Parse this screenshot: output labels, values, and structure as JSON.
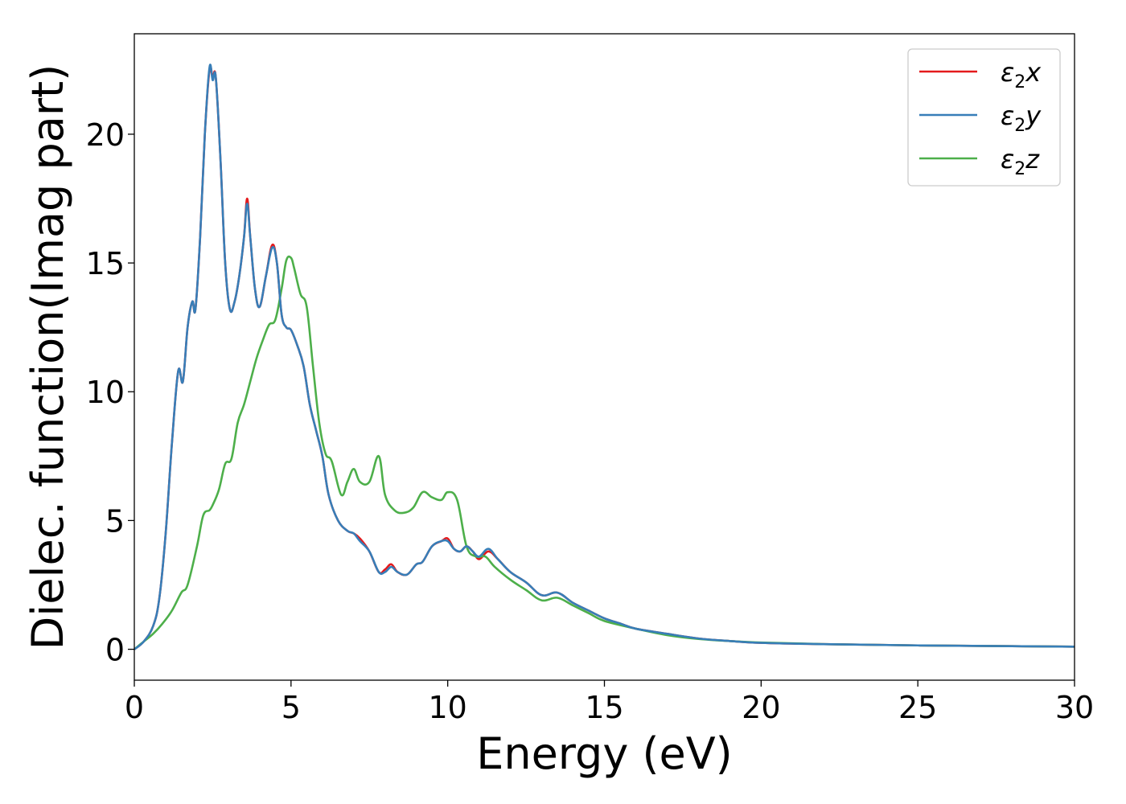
{
  "chart_data": {
    "type": "line",
    "xlabel": "Energy (eV)",
    "ylabel": "Dielec. function(Imag part)",
    "xlim": [
      0,
      30
    ],
    "ylim": [
      -1.2,
      23.9
    ],
    "xticks": [
      0,
      5,
      10,
      15,
      20,
      25,
      30
    ],
    "yticks": [
      0,
      5,
      10,
      15,
      20
    ],
    "grid": false,
    "legend": "top-right",
    "series": [
      {
        "name": "ε2x",
        "legend_base": "ε",
        "legend_sub": "2",
        "legend_tail": "x",
        "color": "#e41a1c",
        "x": [
          0,
          0.3,
          0.6,
          0.8,
          1.0,
          1.2,
          1.4,
          1.55,
          1.7,
          1.85,
          1.95,
          2.1,
          2.25,
          2.4,
          2.5,
          2.6,
          2.75,
          2.9,
          3.05,
          3.2,
          3.35,
          3.5,
          3.6,
          3.7,
          3.85,
          4.0,
          4.2,
          4.4,
          4.55,
          4.7,
          4.85,
          5.0,
          5.2,
          5.4,
          5.6,
          5.8,
          6.0,
          6.2,
          6.5,
          6.8,
          7.0,
          7.2,
          7.5,
          7.8,
          8.0,
          8.2,
          8.4,
          8.7,
          9.0,
          9.2,
          9.5,
          9.8,
          10.0,
          10.2,
          10.4,
          10.6,
          10.8,
          11.0,
          11.3,
          11.6,
          12.0,
          12.5,
          13.0,
          13.5,
          14.0,
          14.5,
          15.0,
          15.5,
          16.0,
          17.0,
          18.0,
          19.0,
          20.0,
          22.0,
          25.0,
          28.0,
          30.0
        ],
        "values": [
          0,
          0.3,
          0.9,
          2.0,
          4.5,
          8.0,
          10.8,
          10.4,
          12.5,
          13.5,
          13.2,
          16.0,
          20.0,
          22.5,
          22.2,
          22.2,
          19.0,
          15.0,
          13.2,
          13.5,
          14.5,
          16.0,
          17.5,
          16.0,
          14.0,
          13.3,
          14.5,
          15.7,
          15.0,
          13.0,
          12.5,
          12.4,
          11.8,
          11.0,
          9.5,
          8.5,
          7.5,
          6.0,
          5.0,
          4.6,
          4.5,
          4.3,
          3.8,
          3.0,
          3.1,
          3.3,
          3.0,
          2.9,
          3.3,
          3.4,
          4.0,
          4.2,
          4.3,
          3.9,
          3.8,
          4.0,
          3.8,
          3.5,
          3.8,
          3.5,
          3.0,
          2.6,
          2.1,
          2.2,
          1.8,
          1.5,
          1.2,
          1.0,
          0.8,
          0.6,
          0.42,
          0.32,
          0.25,
          0.2,
          0.15,
          0.12,
          0.1
        ]
      },
      {
        "name": "ε2y",
        "legend_base": "ε",
        "legend_sub": "2",
        "legend_tail": "y",
        "color": "#377eb8",
        "x": [
          0,
          0.3,
          0.6,
          0.8,
          1.0,
          1.2,
          1.4,
          1.55,
          1.7,
          1.85,
          1.95,
          2.1,
          2.25,
          2.4,
          2.5,
          2.6,
          2.75,
          2.9,
          3.05,
          3.2,
          3.35,
          3.5,
          3.6,
          3.7,
          3.85,
          4.0,
          4.2,
          4.4,
          4.55,
          4.7,
          4.85,
          5.0,
          5.2,
          5.4,
          5.6,
          5.8,
          6.0,
          6.2,
          6.5,
          6.8,
          7.0,
          7.2,
          7.5,
          7.8,
          8.0,
          8.2,
          8.4,
          8.7,
          9.0,
          9.2,
          9.5,
          9.8,
          10.0,
          10.2,
          10.4,
          10.6,
          10.8,
          11.0,
          11.3,
          11.6,
          12.0,
          12.5,
          13.0,
          13.5,
          14.0,
          14.5,
          15.0,
          15.5,
          16.0,
          17.0,
          18.0,
          19.0,
          20.0,
          22.0,
          25.0,
          28.0,
          30.0
        ],
        "values": [
          0,
          0.3,
          0.9,
          2.0,
          4.5,
          8.0,
          10.8,
          10.4,
          12.5,
          13.5,
          13.2,
          16.0,
          20.0,
          22.6,
          22.1,
          22.2,
          19.0,
          15.0,
          13.2,
          13.5,
          14.5,
          16.0,
          17.3,
          16.0,
          14.0,
          13.3,
          14.5,
          15.6,
          15.0,
          13.0,
          12.5,
          12.4,
          11.8,
          11.0,
          9.5,
          8.5,
          7.5,
          6.0,
          5.0,
          4.6,
          4.5,
          4.2,
          3.8,
          3.0,
          3.0,
          3.2,
          3.0,
          2.9,
          3.3,
          3.4,
          4.0,
          4.2,
          4.2,
          3.9,
          3.8,
          4.0,
          3.8,
          3.6,
          3.9,
          3.5,
          3.0,
          2.6,
          2.1,
          2.2,
          1.8,
          1.5,
          1.2,
          1.0,
          0.8,
          0.6,
          0.42,
          0.32,
          0.25,
          0.2,
          0.15,
          0.12,
          0.1
        ]
      },
      {
        "name": "ε2z",
        "legend_base": "ε",
        "legend_sub": "2",
        "legend_tail": "z",
        "color": "#4daf4a",
        "x": [
          0,
          0.3,
          0.6,
          0.9,
          1.2,
          1.5,
          1.7,
          2.0,
          2.2,
          2.4,
          2.5,
          2.7,
          2.9,
          3.1,
          3.3,
          3.5,
          3.7,
          3.9,
          4.1,
          4.3,
          4.5,
          4.7,
          4.85,
          5.0,
          5.1,
          5.3,
          5.5,
          5.7,
          5.9,
          6.1,
          6.3,
          6.6,
          6.8,
          7.0,
          7.2,
          7.5,
          7.8,
          8.0,
          8.3,
          8.6,
          8.9,
          9.2,
          9.5,
          9.8,
          10.0,
          10.3,
          10.6,
          10.9,
          11.2,
          11.5,
          12.0,
          12.5,
          13.0,
          13.5,
          14.0,
          14.5,
          15.0,
          16.0,
          17.0,
          18.0,
          19.0,
          20.0,
          22.0,
          25.0,
          28.0,
          30.0
        ],
        "values": [
          0,
          0.3,
          0.6,
          1.0,
          1.5,
          2.2,
          2.5,
          4.0,
          5.2,
          5.4,
          5.6,
          6.2,
          7.2,
          7.4,
          8.8,
          9.5,
          10.4,
          11.3,
          12.0,
          12.6,
          12.8,
          14.0,
          15.1,
          15.2,
          14.8,
          13.8,
          13.3,
          11.0,
          8.8,
          7.6,
          7.3,
          6.0,
          6.5,
          7.0,
          6.5,
          6.5,
          7.5,
          6.0,
          5.4,
          5.3,
          5.5,
          6.1,
          5.9,
          5.8,
          6.1,
          5.8,
          4.0,
          3.6,
          3.6,
          3.2,
          2.7,
          2.3,
          1.9,
          2.0,
          1.7,
          1.4,
          1.1,
          0.8,
          0.55,
          0.4,
          0.32,
          0.26,
          0.2,
          0.15,
          0.12,
          0.1
        ]
      }
    ]
  }
}
